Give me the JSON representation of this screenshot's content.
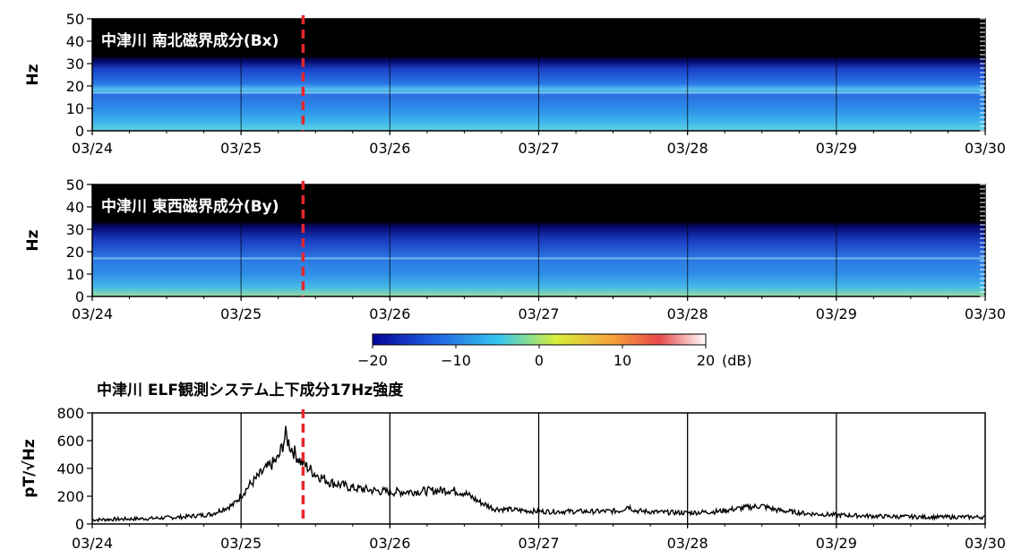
{
  "chart_data": [
    {
      "type": "heatmap",
      "title": "中津川  南北磁界成分(Bx)",
      "ylabel": "Hz",
      "y_ticks": [
        "0",
        "10",
        "20",
        "30",
        "40",
        "50"
      ],
      "ylim": [
        0,
        50
      ],
      "x_ticks": [
        "03/24",
        "03/25",
        "03/26",
        "03/27",
        "03/28",
        "03/29",
        "03/30"
      ],
      "event_marker_x": "03/25 10:00",
      "event_marker_color": "#e8262b",
      "colormap": "jet"
    },
    {
      "type": "heatmap",
      "title": "中津川  東西磁界成分(By)",
      "ylabel": "Hz",
      "y_ticks": [
        "0",
        "10",
        "20",
        "30",
        "40",
        "50"
      ],
      "ylim": [
        0,
        50
      ],
      "x_ticks": [
        "03/24",
        "03/25",
        "03/26",
        "03/27",
        "03/28",
        "03/29",
        "03/30"
      ],
      "event_marker_x": "03/25 10:00",
      "event_marker_color": "#e8262b",
      "colormap": "jet"
    },
    {
      "type": "colorbar",
      "ticks": [
        "−20",
        "−10",
        "0",
        "10",
        "20"
      ],
      "unit": "(dB)",
      "range": [
        -20,
        20
      ],
      "colors": [
        "#06049a",
        "#1f5fe0",
        "#36c8f0",
        "#d8ef3a",
        "#f6a23a",
        "#e8494a",
        "#ffffff"
      ]
    },
    {
      "type": "line",
      "title": "中津川  ELF観測システム上下成分17Hz強度",
      "ylabel": "pT/√Hz",
      "y_ticks": [
        "0",
        "200",
        "400",
        "600",
        "800"
      ],
      "ylim": [
        0,
        800
      ],
      "x_ticks": [
        "03/24",
        "03/25",
        "03/26",
        "03/27",
        "03/28",
        "03/29",
        "03/30"
      ],
      "x_days": [
        0,
        6
      ],
      "event_marker_x": "03/25 10:00",
      "event_marker_color": "#e8262b",
      "series": [
        {
          "points": [
            [
              0.0,
              30
            ],
            [
              0.2,
              35
            ],
            [
              0.4,
              40
            ],
            [
              0.6,
              50
            ],
            [
              0.8,
              70
            ],
            [
              0.95,
              140
            ],
            [
              1.05,
              270
            ],
            [
              1.15,
              380
            ],
            [
              1.25,
              470
            ],
            [
              1.3,
              640
            ],
            [
              1.33,
              560
            ],
            [
              1.4,
              450
            ],
            [
              1.5,
              360
            ],
            [
              1.6,
              300
            ],
            [
              1.75,
              260
            ],
            [
              1.9,
              240
            ],
            [
              2.0,
              230
            ],
            [
              2.2,
              235
            ],
            [
              2.4,
              245
            ],
            [
              2.5,
              225
            ],
            [
              2.6,
              160
            ],
            [
              2.7,
              110
            ],
            [
              2.85,
              100
            ],
            [
              3.0,
              90
            ],
            [
              3.2,
              90
            ],
            [
              3.4,
              90
            ],
            [
              3.55,
              95
            ],
            [
              3.6,
              130
            ],
            [
              3.65,
              95
            ],
            [
              3.8,
              85
            ],
            [
              4.0,
              80
            ],
            [
              4.2,
              90
            ],
            [
              4.4,
              120
            ],
            [
              4.5,
              130
            ],
            [
              4.6,
              100
            ],
            [
              4.8,
              75
            ],
            [
              5.0,
              65
            ],
            [
              5.3,
              55
            ],
            [
              5.6,
              50
            ],
            [
              5.8,
              50
            ],
            [
              6.0,
              50
            ]
          ]
        }
      ]
    }
  ]
}
